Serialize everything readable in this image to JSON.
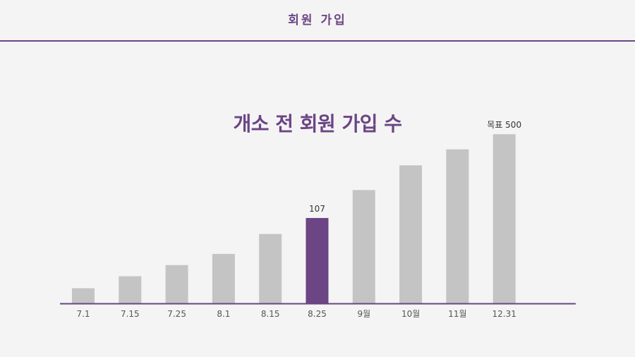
{
  "header": {
    "title": "회원 가입"
  },
  "chart_data": {
    "type": "bar",
    "title": "개소 전 회원 가입 수",
    "categories": [
      "7.1",
      "7.15",
      "7.25",
      "8.1",
      "8.15",
      "8.25",
      "9월",
      "10월",
      "11월",
      "12.31"
    ],
    "values": [
      19,
      34,
      48,
      62,
      87,
      107,
      142,
      173,
      193,
      212
    ],
    "highlight_index": 5,
    "data_labels": [
      {
        "index": 5,
        "text": "107"
      },
      {
        "index": 9,
        "text": "목표 500"
      }
    ],
    "colors": {
      "bar": "#c4c4c4",
      "highlight": "#6b4584",
      "axis": "#6b4584"
    },
    "xlabel": "",
    "ylabel": "",
    "ylim": [
      0,
      230
    ],
    "grid": false
  }
}
